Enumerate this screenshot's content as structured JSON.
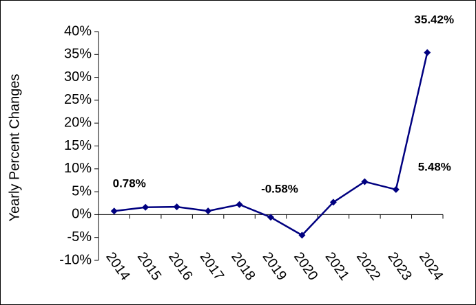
{
  "chart_data": {
    "type": "line",
    "y_label": "Yearly Percent Changes",
    "categories": [
      "2014",
      "2015",
      "2016",
      "2017",
      "2018",
      "2019",
      "2020",
      "2021",
      "2022",
      "2023",
      "2024"
    ],
    "series": [
      {
        "name": "Yearly Percent Changes",
        "color": "#000080",
        "values": [
          0.78,
          1.6,
          1.7,
          0.8,
          2.2,
          -0.58,
          -4.5,
          2.7,
          7.2,
          5.48,
          35.42
        ],
        "value_labels": [
          "0.78%",
          null,
          null,
          null,
          null,
          "-0.58%",
          null,
          null,
          null,
          "5.48%",
          "35.42%"
        ]
      }
    ],
    "ylim": [
      -10,
      40
    ],
    "yticks": [
      {
        "value": -10,
        "label": "-10%"
      },
      {
        "value": -5,
        "label": "-5%"
      },
      {
        "value": 0,
        "label": "0%"
      },
      {
        "value": 5,
        "label": "5%"
      },
      {
        "value": 10,
        "label": "10%"
      },
      {
        "value": 15,
        "label": "15%"
      },
      {
        "value": 20,
        "label": "20%"
      },
      {
        "value": 25,
        "label": "25%"
      },
      {
        "value": 30,
        "label": "30%"
      },
      {
        "value": 35,
        "label": "35%"
      },
      {
        "value": 40,
        "label": "40%"
      }
    ]
  }
}
